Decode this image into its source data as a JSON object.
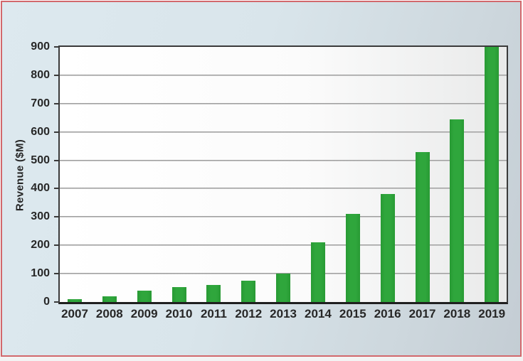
{
  "frame": {
    "border_color": "#d2686c",
    "background_color": "#d9e5eb"
  },
  "chart_data": {
    "type": "bar",
    "title": "",
    "xlabel": "",
    "ylabel": "Revenue ($M)",
    "categories": [
      "2007",
      "2008",
      "2009",
      "2010",
      "2011",
      "2012",
      "2013",
      "2014",
      "2015",
      "2016",
      "2017",
      "2018",
      "2019"
    ],
    "values": [
      10,
      20,
      40,
      52,
      60,
      75,
      100,
      210,
      310,
      380,
      530,
      645,
      900
    ],
    "ylim": [
      0,
      900
    ],
    "ytick_step": 100,
    "yticks": [
      0,
      100,
      200,
      300,
      400,
      500,
      600,
      700,
      800,
      900
    ],
    "grid": true,
    "legend_position": "none",
    "bar_color": "#2fa63c",
    "bar_color_dark": "#289a34",
    "text_color": "#272727"
  }
}
